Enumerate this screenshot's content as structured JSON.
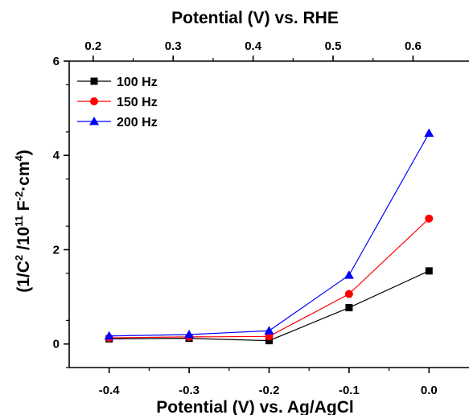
{
  "chart_data": {
    "type": "line",
    "title": "",
    "xlabel": "Potential (V) vs. Ag/AgCl",
    "x2label": "Potential (V) vs. RHE",
    "ylabel_parts": {
      "base1": "1/C",
      "sup1": "2",
      "base2": " /10",
      "sup2": "11",
      "base3": " F",
      "sup3": "-2",
      "base4": "·cm",
      "sup4": "4",
      "base5": ")"
    },
    "xlim": [
      -0.45,
      0.05
    ],
    "x2lim": [
      0.17,
      0.67
    ],
    "ylim": [
      -0.5,
      6
    ],
    "x_ticks": [
      "-0.4",
      "-0.3",
      "-0.2",
      "-0.1",
      "0.0"
    ],
    "x2_ticks": [
      "0.2",
      "0.3",
      "0.4",
      "0.5",
      "0.6"
    ],
    "y_ticks": [
      "0",
      "2",
      "4",
      "6"
    ],
    "x": [
      -0.4,
      -0.3,
      -0.2,
      -0.1,
      0.0
    ],
    "series": [
      {
        "name": "100 Hz",
        "color": "#000000",
        "marker": "square",
        "values": [
          0.11,
          0.12,
          0.07,
          0.77,
          1.55
        ]
      },
      {
        "name": "150 Hz",
        "color": "#ff0000",
        "marker": "circle",
        "values": [
          0.13,
          0.15,
          0.16,
          1.06,
          2.66
        ]
      },
      {
        "name": "200 Hz",
        "color": "#0000ff",
        "marker": "triangle",
        "values": [
          0.17,
          0.2,
          0.28,
          1.46,
          4.47
        ]
      }
    ],
    "legend": "top-left",
    "grid": false
  }
}
